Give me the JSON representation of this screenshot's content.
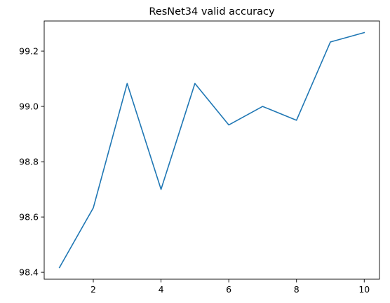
{
  "chart_data": {
    "type": "line",
    "title": "ResNet34 valid accuracy",
    "xlabel": "",
    "ylabel": "",
    "x": [
      1,
      2,
      3,
      4,
      5,
      6,
      7,
      8,
      9,
      10
    ],
    "series": [
      {
        "values": [
          98.417,
          98.633,
          99.083,
          98.7,
          99.083,
          98.933,
          99.0,
          98.95,
          99.233,
          99.267
        ],
        "color": "#1f77b4"
      }
    ],
    "xlim": [
      0.55,
      10.45
    ],
    "ylim": [
      98.375,
      99.309
    ],
    "xticks": [
      2,
      4,
      6,
      8,
      10
    ],
    "xtick_labels": [
      "2",
      "4",
      "6",
      "8",
      "10"
    ],
    "yticks": [
      98.4,
      98.6,
      98.8,
      99.0,
      99.2
    ],
    "ytick_labels": [
      "98.4",
      "98.6",
      "98.8",
      "99.0",
      "99.2"
    ],
    "grid": false,
    "legend": "none"
  }
}
